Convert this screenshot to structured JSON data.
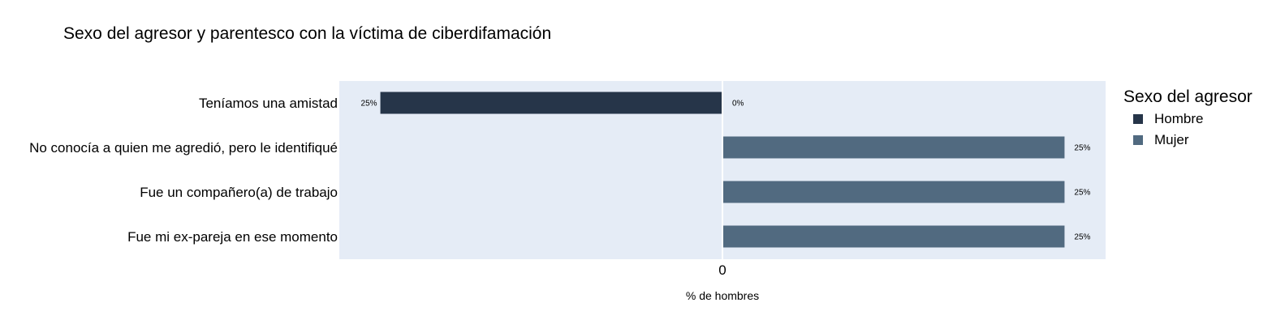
{
  "title": "Sexo del agresor y parentesco con la víctima de ciberdifamación",
  "legend": {
    "title": "Sexo del agresor",
    "items": [
      {
        "label": "Hombre",
        "color": "#263549"
      },
      {
        "label": "Mujer",
        "color": "#516a80"
      }
    ]
  },
  "chart_data": {
    "type": "bar",
    "orientation": "horizontal",
    "title": "Sexo del agresor y parentesco con la víctima de ciberdifamación",
    "xlabel": "% de hombres",
    "ylabel": "",
    "x_tick_labels": [
      "0"
    ],
    "xlim": [
      -0.28,
      0.28
    ],
    "categories": [
      "Teníamos una amistad",
      "No conocía a quien me agredió, pero le identifiqué",
      "Fue un compañero(a) de trabajo",
      "Fue mi ex-pareja en ese momento"
    ],
    "bars": [
      {
        "category": "Teníamos una amistad",
        "series": "Hombre",
        "value": -0.25,
        "label": "25%"
      },
      {
        "category": "Teníamos una amistad",
        "series": "Mujer",
        "value": 0,
        "label": "0%"
      },
      {
        "category": "No conocía a quien me agredió, pero le identifiqué",
        "series": "Mujer",
        "value": 0.25,
        "label": "25%"
      },
      {
        "category": "Fue un compañero(a) de trabajo",
        "series": "Mujer",
        "value": 0.25,
        "label": "25%"
      },
      {
        "category": "Fue mi ex-pareja en ese momento",
        "series": "Mujer",
        "value": 0.25,
        "label": "25%"
      }
    ],
    "plot_background": "#e5ecf6",
    "legend_position": "right"
  }
}
